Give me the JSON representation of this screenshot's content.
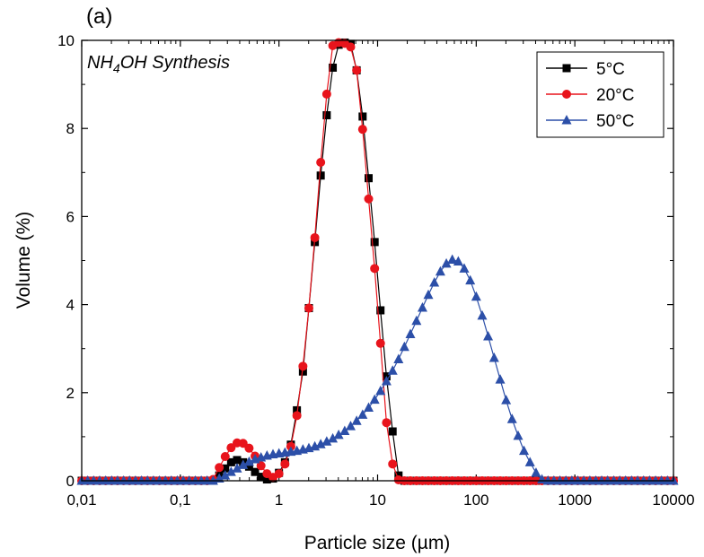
{
  "chart_data": {
    "type": "line",
    "panel_label": "(a)",
    "annotation": {
      "prefix": "NH",
      "subscript": "4",
      "suffix": "OH Synthesis"
    },
    "xlabel": "Particle size (µm)",
    "ylabel": "Volume (%)",
    "x_scale": "log",
    "xlim": [
      0.01,
      10000
    ],
    "ylim": [
      0,
      10
    ],
    "x_ticks": [
      {
        "value": 0.01,
        "label": "0,01"
      },
      {
        "value": 0.1,
        "label": "0,1"
      },
      {
        "value": 1,
        "label": "1"
      },
      {
        "value": 10,
        "label": "10"
      },
      {
        "value": 100,
        "label": "100"
      },
      {
        "value": 1000,
        "label": "1000"
      },
      {
        "value": 10000,
        "label": "10000"
      }
    ],
    "y_ticks": [
      {
        "value": 0,
        "label": "0"
      },
      {
        "value": 2,
        "label": "2"
      },
      {
        "value": 4,
        "label": "4"
      },
      {
        "value": 6,
        "label": "6"
      },
      {
        "value": 8,
        "label": "8"
      },
      {
        "value": 10,
        "label": "10"
      }
    ],
    "grid": false,
    "legend_position": "top-right",
    "series": [
      {
        "name": "5°C",
        "color": "#000000",
        "marker": "square",
        "points": [
          [
            0.01,
            0
          ],
          [
            0.0115,
            0
          ],
          [
            0.0132,
            0
          ],
          [
            0.0152,
            0
          ],
          [
            0.0175,
            0
          ],
          [
            0.0201,
            0
          ],
          [
            0.0231,
            0
          ],
          [
            0.0266,
            0
          ],
          [
            0.0305,
            0
          ],
          [
            0.0351,
            0
          ],
          [
            0.0404,
            0
          ],
          [
            0.0464,
            0
          ],
          [
            0.0534,
            0
          ],
          [
            0.0613,
            0
          ],
          [
            0.0705,
            0
          ],
          [
            0.0811,
            0
          ],
          [
            0.0933,
            0
          ],
          [
            0.107,
            0
          ],
          [
            0.123,
            0
          ],
          [
            0.142,
            0
          ],
          [
            0.163,
            0
          ],
          [
            0.187,
            0
          ],
          [
            0.215,
            0
          ],
          [
            0.248,
            0.12
          ],
          [
            0.285,
            0.28
          ],
          [
            0.327,
            0.42
          ],
          [
            0.376,
            0.47
          ],
          [
            0.433,
            0.42
          ],
          [
            0.498,
            0.32
          ],
          [
            0.572,
            0.2
          ],
          [
            0.658,
            0.09
          ],
          [
            0.756,
            0.03
          ],
          [
            0.87,
            0.05
          ],
          [
            1.0,
            0.18
          ],
          [
            1.15,
            0.42
          ],
          [
            1.32,
            0.82
          ],
          [
            1.52,
            1.6
          ],
          [
            1.75,
            2.48
          ],
          [
            2.01,
            3.92
          ],
          [
            2.31,
            5.42
          ],
          [
            2.65,
            6.93
          ],
          [
            3.05,
            8.3
          ],
          [
            3.51,
            9.38
          ],
          [
            4.03,
            9.9
          ],
          [
            4.64,
            9.95
          ],
          [
            5.33,
            9.92
          ],
          [
            6.13,
            9.32
          ],
          [
            7.05,
            8.27
          ],
          [
            8.11,
            6.87
          ],
          [
            9.33,
            5.42
          ],
          [
            10.7,
            3.87
          ],
          [
            12.3,
            2.37
          ],
          [
            14.2,
            1.12
          ],
          [
            16.3,
            0.12
          ],
          [
            18.7,
            0
          ],
          [
            21.5,
            0
          ],
          [
            24.8,
            0
          ],
          [
            28.5,
            0
          ],
          [
            32.7,
            0
          ],
          [
            37.6,
            0
          ],
          [
            43.3,
            0
          ],
          [
            49.8,
            0
          ],
          [
            57.2,
            0
          ],
          [
            65.8,
            0
          ],
          [
            75.6,
            0
          ],
          [
            87.0,
            0
          ],
          [
            100,
            0
          ],
          [
            115,
            0
          ],
          [
            132,
            0
          ],
          [
            152,
            0
          ],
          [
            175,
            0
          ],
          [
            201,
            0
          ],
          [
            231,
            0
          ],
          [
            266,
            0
          ],
          [
            305,
            0
          ],
          [
            351,
            0
          ],
          [
            404,
            0
          ],
          [
            464,
            0
          ],
          [
            534,
            0
          ],
          [
            613,
            0
          ],
          [
            705,
            0
          ],
          [
            811,
            0
          ],
          [
            933,
            0
          ],
          [
            1070,
            0
          ],
          [
            1230,
            0
          ],
          [
            1420,
            0
          ],
          [
            1630,
            0
          ],
          [
            1870,
            0
          ],
          [
            2150,
            0
          ],
          [
            2480,
            0
          ],
          [
            2850,
            0
          ],
          [
            3270,
            0
          ],
          [
            3760,
            0
          ],
          [
            4330,
            0
          ],
          [
            4980,
            0
          ],
          [
            5720,
            0
          ],
          [
            6580,
            0
          ],
          [
            7560,
            0
          ],
          [
            8700,
            0
          ],
          [
            10000,
            0
          ]
        ]
      },
      {
        "name": "20°C",
        "color": "#e8141c",
        "marker": "circle",
        "points": [
          [
            0.01,
            0
          ],
          [
            0.0115,
            0
          ],
          [
            0.0132,
            0
          ],
          [
            0.0152,
            0
          ],
          [
            0.0175,
            0
          ],
          [
            0.0201,
            0
          ],
          [
            0.0231,
            0
          ],
          [
            0.0266,
            0
          ],
          [
            0.0305,
            0
          ],
          [
            0.0351,
            0
          ],
          [
            0.0404,
            0
          ],
          [
            0.0464,
            0
          ],
          [
            0.0534,
            0
          ],
          [
            0.0613,
            0
          ],
          [
            0.0705,
            0
          ],
          [
            0.0811,
            0
          ],
          [
            0.0933,
            0
          ],
          [
            0.107,
            0
          ],
          [
            0.123,
            0
          ],
          [
            0.142,
            0
          ],
          [
            0.163,
            0
          ],
          [
            0.187,
            0
          ],
          [
            0.215,
            0.03
          ],
          [
            0.248,
            0.3
          ],
          [
            0.285,
            0.55
          ],
          [
            0.327,
            0.75
          ],
          [
            0.376,
            0.86
          ],
          [
            0.433,
            0.85
          ],
          [
            0.498,
            0.74
          ],
          [
            0.572,
            0.56
          ],
          [
            0.658,
            0.34
          ],
          [
            0.756,
            0.16
          ],
          [
            0.87,
            0.08
          ],
          [
            1.0,
            0.16
          ],
          [
            1.15,
            0.38
          ],
          [
            1.32,
            0.78
          ],
          [
            1.52,
            1.48
          ],
          [
            1.75,
            2.6
          ],
          [
            2.01,
            3.92
          ],
          [
            2.31,
            5.52
          ],
          [
            2.65,
            7.23
          ],
          [
            3.05,
            8.78
          ],
          [
            3.51,
            9.88
          ],
          [
            4.03,
            9.95
          ],
          [
            4.64,
            9.93
          ],
          [
            5.33,
            9.85
          ],
          [
            6.13,
            9.32
          ],
          [
            7.05,
            7.98
          ],
          [
            8.11,
            6.4
          ],
          [
            9.33,
            4.82
          ],
          [
            10.7,
            3.12
          ],
          [
            12.3,
            1.32
          ],
          [
            14.2,
            0.38
          ],
          [
            16.3,
            0.02
          ],
          [
            18.7,
            0
          ],
          [
            21.5,
            0
          ],
          [
            24.8,
            0
          ],
          [
            28.5,
            0
          ],
          [
            32.7,
            0
          ],
          [
            37.6,
            0
          ],
          [
            43.3,
            0
          ],
          [
            49.8,
            0
          ],
          [
            57.2,
            0
          ],
          [
            65.8,
            0
          ],
          [
            75.6,
            0
          ],
          [
            87.0,
            0
          ],
          [
            100,
            0
          ],
          [
            115,
            0
          ],
          [
            132,
            0
          ],
          [
            152,
            0
          ],
          [
            175,
            0
          ],
          [
            201,
            0
          ],
          [
            231,
            0
          ],
          [
            266,
            0
          ],
          [
            305,
            0
          ],
          [
            351,
            0
          ],
          [
            404,
            0
          ],
          [
            464,
            0
          ],
          [
            534,
            0
          ],
          [
            613,
            0
          ],
          [
            705,
            0
          ],
          [
            811,
            0
          ],
          [
            933,
            0
          ],
          [
            1070,
            0
          ],
          [
            1230,
            0
          ],
          [
            1420,
            0
          ],
          [
            1630,
            0
          ],
          [
            1870,
            0
          ],
          [
            2150,
            0
          ],
          [
            2480,
            0
          ],
          [
            2850,
            0
          ],
          [
            3270,
            0
          ],
          [
            3760,
            0
          ],
          [
            4330,
            0
          ],
          [
            4980,
            0
          ],
          [
            5720,
            0
          ],
          [
            6580,
            0
          ],
          [
            7560,
            0
          ],
          [
            8700,
            0
          ],
          [
            10000,
            0
          ]
        ]
      },
      {
        "name": "50°C",
        "color": "#2c4fa8",
        "marker": "triangle",
        "points": [
          [
            0.01,
            0
          ],
          [
            0.0115,
            0
          ],
          [
            0.0132,
            0
          ],
          [
            0.0152,
            0
          ],
          [
            0.0175,
            0
          ],
          [
            0.0201,
            0
          ],
          [
            0.0231,
            0
          ],
          [
            0.0266,
            0
          ],
          [
            0.0305,
            0
          ],
          [
            0.0351,
            0
          ],
          [
            0.0404,
            0
          ],
          [
            0.0464,
            0
          ],
          [
            0.0534,
            0
          ],
          [
            0.0613,
            0
          ],
          [
            0.0705,
            0
          ],
          [
            0.0811,
            0
          ],
          [
            0.0933,
            0
          ],
          [
            0.107,
            0
          ],
          [
            0.123,
            0
          ],
          [
            0.142,
            0
          ],
          [
            0.163,
            0
          ],
          [
            0.187,
            0
          ],
          [
            0.215,
            0
          ],
          [
            0.248,
            0.05
          ],
          [
            0.285,
            0.12
          ],
          [
            0.327,
            0.2
          ],
          [
            0.376,
            0.28
          ],
          [
            0.433,
            0.36
          ],
          [
            0.498,
            0.43
          ],
          [
            0.572,
            0.49
          ],
          [
            0.658,
            0.53
          ],
          [
            0.756,
            0.57
          ],
          [
            0.87,
            0.6
          ],
          [
            1.0,
            0.62
          ],
          [
            1.15,
            0.64
          ],
          [
            1.32,
            0.66
          ],
          [
            1.52,
            0.68
          ],
          [
            1.75,
            0.71
          ],
          [
            2.01,
            0.74
          ],
          [
            2.31,
            0.78
          ],
          [
            2.65,
            0.83
          ],
          [
            3.05,
            0.89
          ],
          [
            3.51,
            0.96
          ],
          [
            4.03,
            1.04
          ],
          [
            4.64,
            1.13
          ],
          [
            5.33,
            1.24
          ],
          [
            6.13,
            1.36
          ],
          [
            7.05,
            1.5
          ],
          [
            8.11,
            1.66
          ],
          [
            9.33,
            1.84
          ],
          [
            10.7,
            2.04
          ],
          [
            12.3,
            2.26
          ],
          [
            14.2,
            2.5
          ],
          [
            16.3,
            2.76
          ],
          [
            18.7,
            3.04
          ],
          [
            21.5,
            3.33
          ],
          [
            24.8,
            3.63
          ],
          [
            28.5,
            3.93
          ],
          [
            32.7,
            4.22
          ],
          [
            37.6,
            4.5
          ],
          [
            43.3,
            4.75
          ],
          [
            49.8,
            4.93
          ],
          [
            57.2,
            5.02
          ],
          [
            65.8,
            4.98
          ],
          [
            75.6,
            4.82
          ],
          [
            87.0,
            4.55
          ],
          [
            100,
            4.18
          ],
          [
            115,
            3.75
          ],
          [
            132,
            3.28
          ],
          [
            152,
            2.79
          ],
          [
            175,
            2.3
          ],
          [
            201,
            1.83
          ],
          [
            231,
            1.4
          ],
          [
            266,
            1.02
          ],
          [
            305,
            0.68
          ],
          [
            351,
            0.42
          ],
          [
            404,
            0.18
          ],
          [
            464,
            0.03
          ],
          [
            534,
            0
          ],
          [
            613,
            0
          ],
          [
            705,
            0
          ],
          [
            811,
            0
          ],
          [
            933,
            0
          ],
          [
            1070,
            0
          ],
          [
            1230,
            0
          ],
          [
            1420,
            0
          ],
          [
            1630,
            0
          ],
          [
            1870,
            0
          ],
          [
            2150,
            0
          ],
          [
            2480,
            0
          ],
          [
            2850,
            0
          ],
          [
            3270,
            0
          ],
          [
            3760,
            0
          ],
          [
            4330,
            0
          ],
          [
            4980,
            0
          ],
          [
            5720,
            0
          ],
          [
            6580,
            0
          ],
          [
            7560,
            0
          ],
          [
            8700,
            0
          ],
          [
            10000,
            0
          ]
        ]
      }
    ]
  }
}
